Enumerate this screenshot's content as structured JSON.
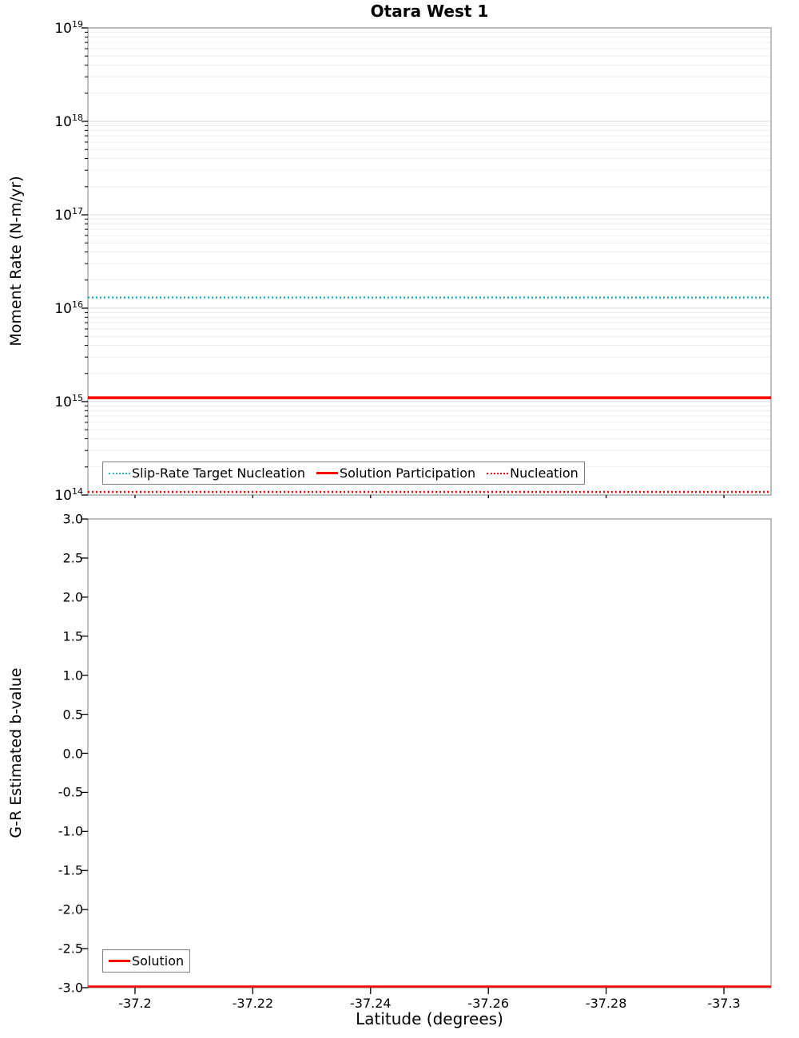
{
  "colors": {
    "cyan": "#25b2c6",
    "red": "#ff0000",
    "grid_major": "#d8d8d8",
    "grid_minor": "#ececec",
    "frame": "#7f7f7f",
    "tick": "#000000",
    "text": "#000000",
    "background": "#ffffff"
  },
  "chart_data": [
    {
      "type": "line",
      "panel": "top",
      "title": "Otara West 1",
      "ylabel": "Moment Rate (N-m/yr)",
      "yscale": "log",
      "ylim": [
        100000000000000.0,
        1e+19
      ],
      "y_tick_exponents": [
        19,
        18,
        17,
        16,
        15,
        14
      ],
      "xlim": [
        -37.192,
        -37.308
      ],
      "x_tick_values": [
        -37.2,
        -37.22,
        -37.24,
        -37.26,
        -37.28,
        -37.3
      ],
      "x_tick_labels_visible": false,
      "grid": "log",
      "legend_position": "inside-bottom",
      "series": [
        {
          "name": "Slip-Rate Target Nucleation",
          "color": "cyan",
          "style": "dotted",
          "width": 2.5,
          "y": 1.3e+16
        },
        {
          "name": "Solution Participation",
          "color": "red",
          "style": "solid",
          "width": 3.5,
          "y": 1100000000000000.0
        },
        {
          "name": "Nucleation",
          "color": "red",
          "style": "dotted",
          "width": 2.5,
          "y": 108000000000000.0
        }
      ]
    },
    {
      "type": "line",
      "panel": "bottom",
      "ylabel": "G-R Estimated b-value",
      "xlabel": "Latitude (degrees)",
      "yscale": "linear",
      "ylim": [
        -3.0,
        3.0
      ],
      "y_ticks": [
        {
          "value": 3.0,
          "label": "3.0"
        },
        {
          "value": 2.5,
          "label": "2.5"
        },
        {
          "value": 2.0,
          "label": "2.0"
        },
        {
          "value": 1.5,
          "label": "1.5"
        },
        {
          "value": 1.0,
          "label": "1.0"
        },
        {
          "value": 0.5,
          "label": "0.5"
        },
        {
          "value": 0.0,
          "label": "0.0"
        },
        {
          "value": -0.5,
          "label": "-0.5"
        },
        {
          "value": -1.0,
          "label": "-1.0"
        },
        {
          "value": -1.5,
          "label": "-1.5"
        },
        {
          "value": -2.0,
          "label": "-2.0"
        },
        {
          "value": -2.5,
          "label": "-2.5"
        },
        {
          "value": -3.0,
          "label": "-3.0"
        }
      ],
      "xlim": [
        -37.192,
        -37.308
      ],
      "x_ticks": [
        {
          "value": -37.2,
          "label": "-37.2"
        },
        {
          "value": -37.22,
          "label": "-37.22"
        },
        {
          "value": -37.24,
          "label": "-37.24"
        },
        {
          "value": -37.26,
          "label": "-37.26"
        },
        {
          "value": -37.28,
          "label": "-37.28"
        },
        {
          "value": -37.3,
          "label": "-37.3"
        }
      ],
      "x_tick_labels_visible": true,
      "grid": "none",
      "legend_position": "inside-bottom-left",
      "series": [
        {
          "name": "Solution",
          "color": "red",
          "style": "solid",
          "width": 2.5,
          "y": -3.0
        }
      ]
    }
  ]
}
